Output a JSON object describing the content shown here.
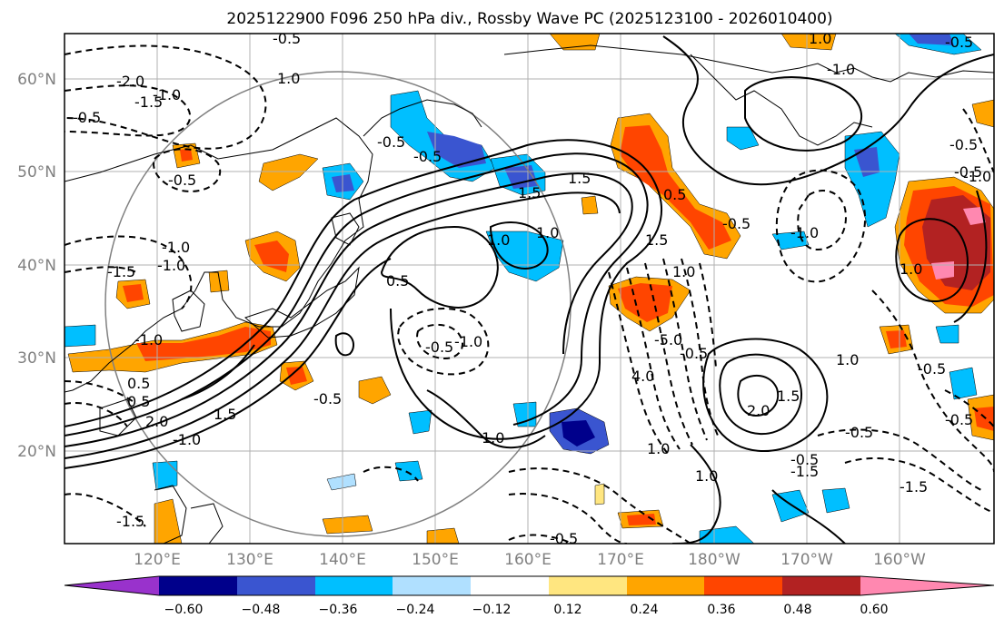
{
  "title": "2025122900 F096 250 hPa div., Rossby Wave PC (2025123100 - 2026010400)",
  "lat_labels": [
    "60°N",
    "50°N",
    "40°N",
    "30°N",
    "20°N"
  ],
  "lon_labels": [
    "120°E",
    "130°E",
    "140°E",
    "150°E",
    "160°E",
    "170°E",
    "180°W",
    "170°W",
    "160°W"
  ],
  "colorbar": {
    "ticks": [
      "−0.60",
      "−0.48",
      "−0.36",
      "−0.24",
      "−0.12",
      "0.12",
      "0.24",
      "0.36",
      "0.48",
      "0.60"
    ],
    "colors": [
      "#9932cc",
      "#00008b",
      "#3a55d0",
      "#00bfff",
      "#b0e0ff",
      "#ffffff",
      "#ffe680",
      "#ffa500",
      "#ff4500",
      "#b22222",
      "#ff88b0"
    ]
  },
  "contour_labels": [
    "-0.5",
    "-2.0",
    "-1.5",
    "-1.0",
    "-0.5",
    "-0.5",
    "1.0",
    "-0.5",
    "-0.5",
    "1.5",
    "1.5",
    "1.0",
    "-1.5",
    "-1.0",
    "1.0",
    "0.5",
    "-0.5",
    "-1.0",
    "-0.5",
    "0.5",
    "-1.0",
    "1.0",
    "2.0",
    "1.5",
    "-1.0",
    "1.0",
    "-0.5",
    "-0.5",
    "-1.0",
    "-0.5",
    "1.0",
    "4.0",
    "-5.0",
    "-0.5",
    "-1.5",
    "-0.5",
    "1.0",
    "-0.5",
    "-1.5",
    "1.0",
    "-1.5",
    "-1.0",
    "0.5",
    "1.5",
    "2.0",
    "1.0",
    "-0.5",
    "-0.5",
    "1.5",
    "-1.0",
    "-1.0",
    "0.5",
    "-0.5",
    "-0.5",
    "1.0"
  ]
}
